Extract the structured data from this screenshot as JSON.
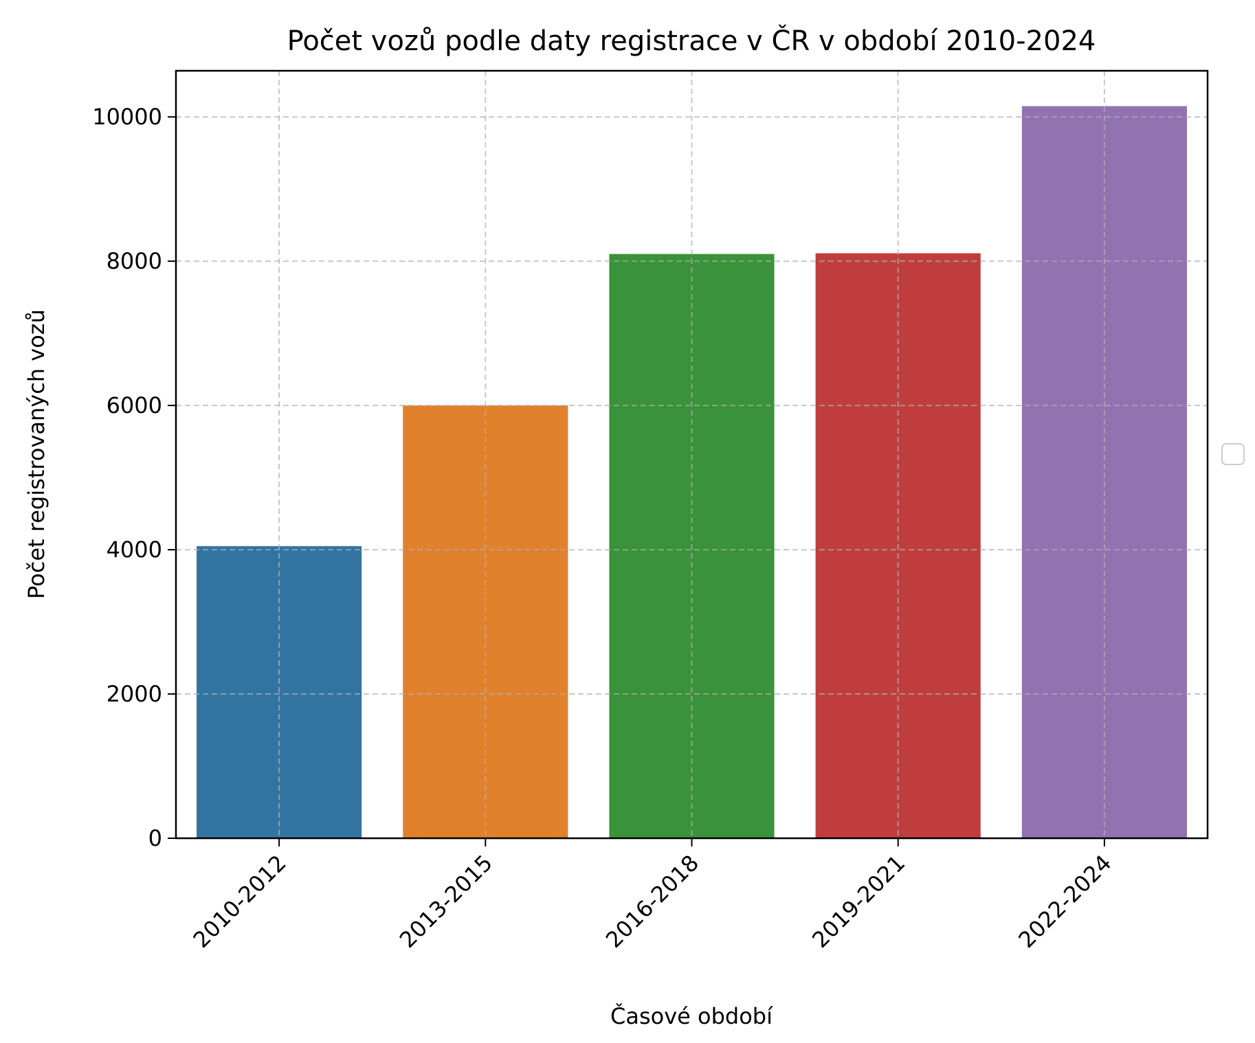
{
  "chart_data": {
    "type": "bar",
    "title": "Počet vozů podle daty registrace v ČR v období 2010-2024",
    "xlabel": "Časové období",
    "ylabel": "Počet registrovaných vozů",
    "categories": [
      "2010-2012",
      "2013-2015",
      "2016-2018",
      "2019-2021",
      "2022-2024"
    ],
    "values": [
      4050,
      6000,
      8100,
      8110,
      10150
    ],
    "colors": [
      "#3274a1",
      "#e1812c",
      "#3a923a",
      "#c03d3e",
      "#9372b2"
    ],
    "ylim": [
      0,
      10640
    ],
    "yticks": [
      0,
      2000,
      4000,
      6000,
      8000,
      10000
    ],
    "grid": true,
    "legend": "empty, right of plot"
  }
}
